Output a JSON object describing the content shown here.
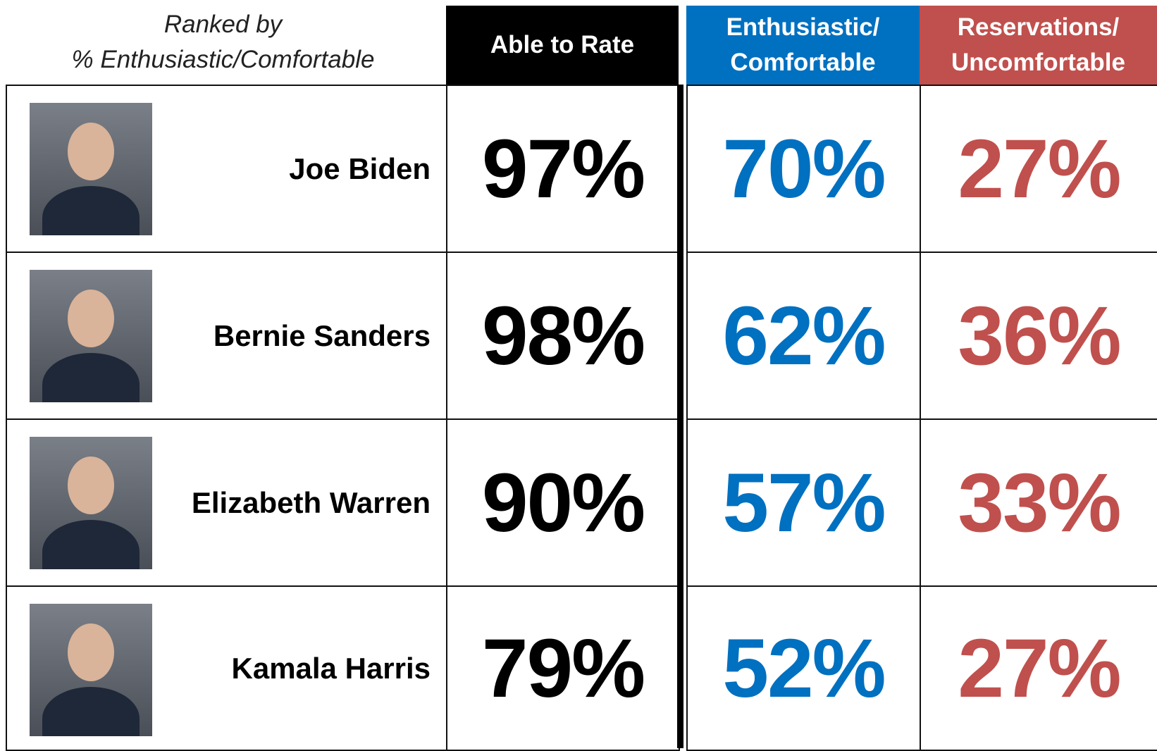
{
  "header": {
    "ranking_note": [
      "Ranked by",
      "% Enthusiastic/Comfortable"
    ],
    "columns": [
      {
        "lines": [
          "Able to Rate"
        ],
        "color": "#000000"
      },
      {
        "lines": [
          "Enthusiastic/",
          "Comfortable"
        ],
        "color": "#0070c0"
      },
      {
        "lines": [
          "Reservations/",
          "Uncomfortable"
        ],
        "color": "#c0504d"
      }
    ]
  },
  "table": {
    "rows": [
      {
        "name": "Joe Biden",
        "values": [
          "97%",
          "70%",
          "27%"
        ]
      },
      {
        "name": "Bernie Sanders",
        "values": [
          "98%",
          "62%",
          "36%"
        ]
      },
      {
        "name": "Elizabeth Warren",
        "values": [
          "90%",
          "57%",
          "33%"
        ]
      },
      {
        "name": "Kamala Harris",
        "values": [
          "79%",
          "52%",
          "27%"
        ]
      }
    ]
  }
}
